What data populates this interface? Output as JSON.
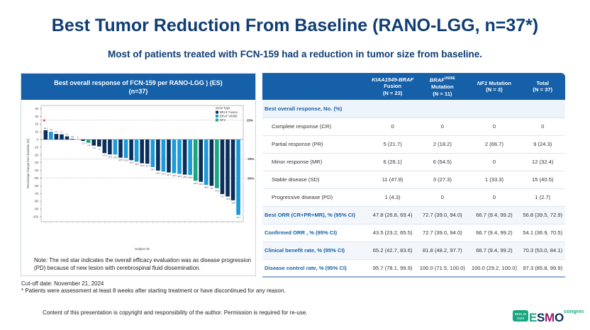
{
  "title": "Best Tumor Reduction From Baseline (RANO-LGG, n=37*)",
  "subtitle": "Most of patients treated with FCN-159 had a reduction in tumor size from baseline.",
  "panel": {
    "title_line1": "Best overall response of FCN-159 per RANO-LGG ) (ES)",
    "title_line2": "(n=37)",
    "note": "Note: The red star indicates the overall efficacy evaluation was as disease progression (PD) because of new lesion with cerebrospinal fluid dissemination."
  },
  "chart_data": {
    "type": "bar",
    "xlabel": "Subject ID",
    "ylabel": "Percentage change from baseline (%)",
    "ylim": [
      -110,
      45
    ],
    "yticks": [
      40,
      30,
      20,
      10,
      0,
      -10,
      -20,
      -30,
      -40,
      -50,
      -60,
      -70,
      -80,
      -90,
      -100
    ],
    "reference_lines": [
      {
        "value": 25,
        "label": "25%"
      },
      {
        "value": -25,
        "label": "-25%"
      },
      {
        "value": -50,
        "label": "-50%"
      }
    ],
    "legend": {
      "title": "Gene Type",
      "placement": "top-right",
      "entries": [
        {
          "name": "BRAF Fusion",
          "color": "#0b2f5b"
        },
        {
          "name": "BRAF V600E",
          "color": "#1a9ad6"
        },
        {
          "name": "NF1",
          "color": "#1aa67f"
        }
      ]
    },
    "values": [
      12.1,
      10,
      7.2,
      6.7,
      4.1,
      0.8,
      0,
      -1.8,
      -4.3,
      -7.9,
      -9,
      -17.6,
      -19.3,
      -19.5,
      -23.5,
      -23.9,
      -26.8,
      -28.8,
      -30.8,
      -31.3,
      -35.7,
      -40.3,
      -41.5,
      -42.7,
      -43.6,
      -44.5,
      -45.5,
      -45.9,
      -53.5,
      -54.8,
      -58.8,
      -60,
      -63.1,
      -70.7,
      -73.8,
      -78.8,
      -97.7
    ],
    "gene_type": [
      "BRAF Fusion",
      "BRAF V600E",
      "BRAF Fusion",
      "BRAF Fusion",
      "BRAF Fusion",
      "BRAF Fusion",
      "BRAF Fusion",
      "BRAF Fusion",
      "NF1",
      "BRAF Fusion",
      "BRAF Fusion",
      "BRAF Fusion",
      "BRAF Fusion",
      "BRAF V600E",
      "BRAF Fusion",
      "BRAF V600E",
      "BRAF Fusion",
      "BRAF V600E",
      "BRAF Fusion",
      "BRAF Fusion",
      "BRAF V600E",
      "BRAF Fusion",
      "BRAF V600E",
      "BRAF Fusion",
      "BRAF V600E",
      "BRAF V600E",
      "BRAF Fusion",
      "BRAF V600E",
      "NF1",
      "BRAF Fusion",
      "BRAF V600E",
      "BRAF Fusion",
      "NF1",
      "BRAF Fusion",
      "BRAF Fusion",
      "BRAF Fusion",
      "BRAF V600E"
    ],
    "star_marker_index": 0,
    "star_color": "#d9252a"
  },
  "table": {
    "headers": [
      {
        "l1": "",
        "l2": "",
        "l3": ""
      },
      {
        "l1": "KIAA1549-BRAF",
        "l2": "Fusion",
        "l3": "(N = 23)"
      },
      {
        "l1": "BRAF",
        "sup": "V600E",
        "l2": "Mutation",
        "l3": "(N = 11)"
      },
      {
        "l1": "NF1",
        "l1b": " Mutation",
        "l2": "(N = 3)",
        "l3": ""
      },
      {
        "l1": "Total",
        "l2": "(N = 37)",
        "l3": ""
      }
    ],
    "section": "Best overall response, No. (%)",
    "rows": [
      [
        "Complete response (CR)",
        "0",
        "0",
        "0",
        "0"
      ],
      [
        "Partial response (PR)",
        "5 (21.7)",
        "2 (18.2)",
        "2 (66.7)",
        "9 (24.3)"
      ],
      [
        "Minor response (MR)",
        "6 (26.1)",
        "6 (54.5)",
        "0",
        "12 (32.4)"
      ],
      [
        "Stable disease (SD)",
        "11 (47.8)",
        "3 (27.3)",
        "1 (33.3)",
        "15 (40.5)"
      ],
      [
        "Progressive disease (PD)",
        "1 (4.3)",
        "0",
        "0",
        "1 (2.7)"
      ]
    ],
    "rates": [
      [
        "Best ORR (CR+PR+MR), % (95% CI)",
        "47.8 (26.8, 69.4)",
        "72.7 (39.0, 94.0)",
        "66.7 (9.4, 99.2)",
        "56.8 (39.5, 72.9)"
      ],
      [
        "Confirmed ORR , % (95% CI)",
        "43.5 (23.2, 65.5)",
        "72.7 (39.0, 94.0)",
        "66.7 (9.4, 99.2)",
        "54.1 (36.9, 70.5)"
      ],
      [
        "Clinical benefit rate, % (95% CI)",
        "65.2 (42.7, 83.6)",
        "81.8 (48.2, 97.7)",
        "66.7 (9.4, 99.2)",
        "70.3 (53.0, 84.1)"
      ],
      [
        "Disease control rate, % (95% CI)",
        "95.7 (78.1, 99.9)",
        "100.0 (71.5, 100.0)",
        "100.0 (29.2, 100.0)",
        "97.3 (85.8, 99.9)"
      ]
    ]
  },
  "footer": {
    "cutoff": "Cut-off date: November 21, 2024",
    "footnote": "* Patients were assessment at least 8 weeks after starting treatment or have discontinued for any reason.",
    "copyright": "Content of this presentation is copyright and responsibility of the author. Permission is required for re-use."
  },
  "logo": {
    "city": "BERLIN",
    "year": "2025",
    "brand": "ESMO",
    "suffix": "congress"
  }
}
